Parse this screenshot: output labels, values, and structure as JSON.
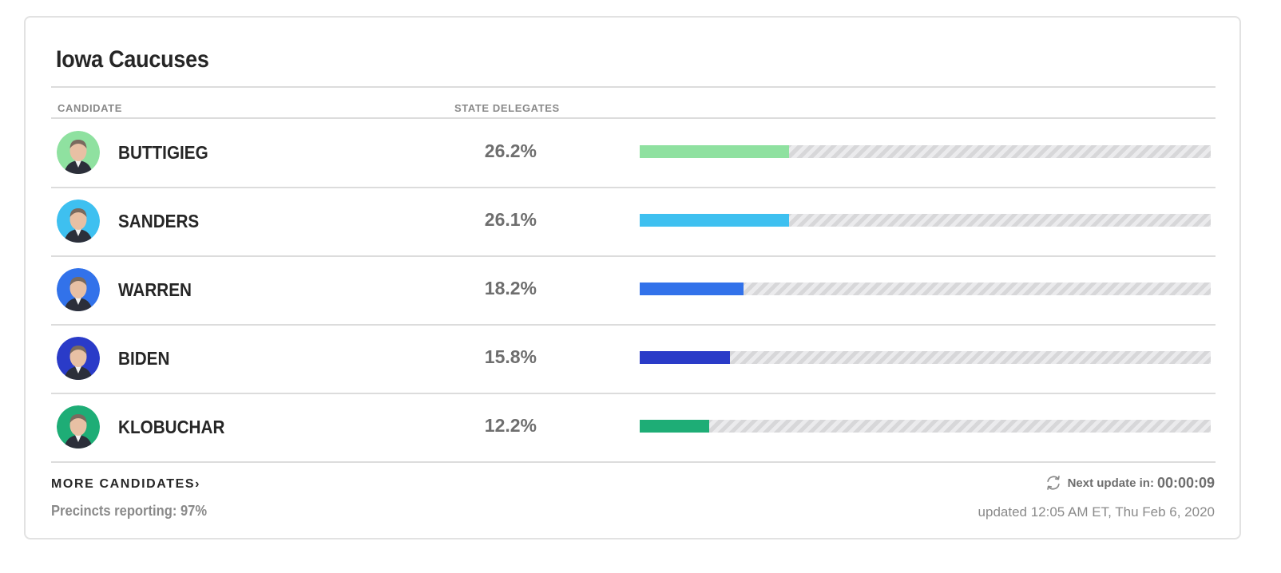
{
  "widget": {
    "title": "Iowa Caucuses",
    "columns": {
      "candidate": "CANDIDATE",
      "delegates": "STATE DELEGATES"
    }
  },
  "candidates": [
    {
      "name": "BUTTIGIEG",
      "percent": "26.2%",
      "share": 0.262,
      "color": "#8fe1a0",
      "ring": "#8fe1a0"
    },
    {
      "name": "SANDERS",
      "percent": "26.1%",
      "share": 0.261,
      "color": "#3ec0f0",
      "ring": "#3ec0f0"
    },
    {
      "name": "WARREN",
      "percent": "18.2%",
      "share": 0.182,
      "color": "#3272ea",
      "ring": "#3272ea"
    },
    {
      "name": "BIDEN",
      "percent": "15.8%",
      "share": 0.158,
      "color": "#2a3bc8",
      "ring": "#2a3bc8"
    },
    {
      "name": "KLOBUCHAR",
      "percent": "12.2%",
      "share": 0.122,
      "color": "#1ead76",
      "ring": "#1ead76"
    }
  ],
  "footer": {
    "more_label": "MORE CANDIDATES",
    "more_chevron": "›",
    "precincts": "Precincts reporting: 97%",
    "next_update_label": "Next update in:",
    "next_update_time": "00:00:09",
    "updated": "updated 12:05 AM ET, Thu Feb 6, 2020",
    "refresh_icon": "refresh-icon"
  }
}
